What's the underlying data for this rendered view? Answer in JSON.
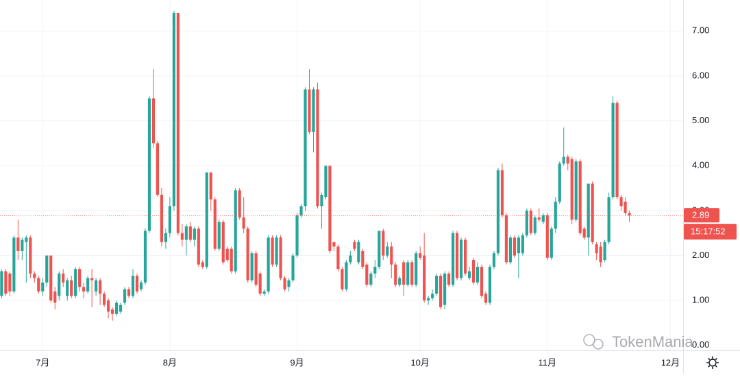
{
  "chart_data": {
    "type": "candlestick",
    "x": [
      20,
      21,
      22,
      23,
      24,
      25,
      26,
      27,
      28,
      29,
      30,
      31,
      32,
      33,
      34,
      35,
      36,
      37,
      38,
      39,
      40,
      41,
      42,
      43,
      44,
      45,
      46,
      47,
      48,
      49,
      50,
      51,
      52,
      53,
      54,
      55,
      56,
      57,
      58,
      59,
      60,
      61,
      62,
      63,
      64,
      65,
      66,
      67,
      68,
      69,
      70,
      71,
      72,
      73,
      74,
      75,
      76,
      77,
      78,
      79,
      80,
      81,
      82,
      83,
      84,
      85,
      86,
      87,
      88,
      89,
      90,
      91,
      92,
      93,
      94,
      95,
      96,
      97,
      98,
      99,
      100,
      101,
      102,
      103,
      104,
      105,
      106,
      107,
      108,
      109,
      110,
      111,
      112,
      113,
      114,
      115,
      116,
      117,
      118,
      119,
      120,
      121,
      122,
      123,
      124,
      125,
      126,
      127,
      128,
      129,
      130,
      131,
      132,
      133,
      134,
      135,
      136,
      137,
      138,
      139,
      140,
      141,
      142,
      143,
      144,
      145,
      146,
      147,
      148,
      149,
      150,
      151,
      152,
      153,
      154,
      155,
      156,
      157,
      158,
      159,
      160,
      161,
      162,
      163,
      164,
      165,
      166,
      167,
      168,
      169,
      170,
      171,
      172,
      173
    ],
    "ohlc": [
      [
        1.1,
        1.7,
        1.05,
        1.65
      ],
      [
        1.65,
        1.7,
        1.1,
        1.15
      ],
      [
        1.6,
        1.65,
        1.1,
        1.2
      ],
      [
        1.2,
        2.45,
        1.15,
        2.4
      ],
      [
        2.4,
        2.8,
        1.9,
        2.1
      ],
      [
        2.1,
        2.4,
        1.9,
        2.35
      ],
      [
        2.3,
        2.45,
        1.4,
        2.4
      ],
      [
        2.4,
        2.45,
        1.5,
        1.6
      ],
      [
        1.6,
        1.65,
        1.4,
        1.5
      ],
      [
        1.5,
        1.55,
        1.15,
        1.2
      ],
      [
        1.2,
        1.5,
        1.1,
        1.4
      ],
      [
        1.4,
        2.0,
        1.3,
        2.0
      ],
      [
        2.0,
        2.0,
        0.95,
        1.0
      ],
      [
        1.2,
        1.3,
        0.8,
        0.95
      ],
      [
        1.1,
        1.65,
        1.0,
        1.6
      ],
      [
        1.6,
        1.7,
        1.3,
        1.4
      ],
      [
        1.1,
        1.5,
        1.0,
        1.45
      ],
      [
        1.45,
        1.55,
        1.05,
        1.1
      ],
      [
        1.1,
        1.75,
        1.05,
        1.7
      ],
      [
        1.7,
        1.75,
        1.2,
        1.3
      ],
      [
        1.3,
        1.4,
        1.05,
        1.2
      ],
      [
        1.2,
        1.55,
        1.15,
        1.5
      ],
      [
        1.5,
        1.7,
        0.85,
        1.45
      ],
      [
        1.2,
        1.5,
        1.1,
        1.45
      ],
      [
        1.45,
        1.5,
        0.9,
        1.15
      ],
      [
        1.15,
        1.2,
        0.85,
        0.9
      ],
      [
        1.0,
        1.05,
        0.6,
        0.75
      ],
      [
        0.8,
        0.85,
        0.55,
        0.7
      ],
      [
        0.7,
        1.0,
        0.65,
        0.95
      ],
      [
        0.75,
        0.95,
        0.7,
        0.9
      ],
      [
        0.95,
        1.3,
        0.9,
        1.25
      ],
      [
        1.25,
        1.3,
        1.05,
        1.1
      ],
      [
        1.1,
        1.7,
        1.05,
        1.55
      ],
      [
        1.55,
        1.6,
        1.15,
        1.2
      ],
      [
        1.25,
        1.45,
        1.2,
        1.4
      ],
      [
        1.4,
        2.6,
        1.35,
        2.55
      ],
      [
        2.55,
        5.55,
        2.5,
        5.5
      ],
      [
        5.5,
        6.15,
        4.4,
        4.5
      ],
      [
        4.5,
        4.55,
        3.3,
        3.35
      ],
      [
        3.35,
        3.5,
        2.2,
        2.3
      ],
      [
        2.3,
        2.6,
        2.15,
        2.5
      ],
      [
        2.5,
        3.3,
        2.4,
        3.1
      ],
      [
        3.1,
        7.45,
        3.0,
        7.4
      ],
      [
        7.4,
        7.4,
        2.45,
        2.5
      ],
      [
        2.5,
        2.7,
        2.2,
        2.35
      ],
      [
        2.35,
        2.7,
        2.0,
        2.65
      ],
      [
        2.65,
        2.75,
        2.3,
        2.35
      ],
      [
        2.35,
        2.65,
        2.2,
        2.6
      ],
      [
        2.6,
        2.65,
        1.75,
        1.8
      ],
      [
        1.85,
        1.9,
        1.7,
        1.75
      ],
      [
        1.75,
        3.85,
        1.7,
        3.85
      ],
      [
        3.85,
        3.85,
        3.0,
        3.25
      ],
      [
        3.25,
        3.3,
        2.1,
        2.15
      ],
      [
        2.15,
        2.8,
        2.1,
        2.75
      ],
      [
        2.75,
        2.8,
        1.8,
        1.85
      ],
      [
        2.15,
        2.2,
        1.85,
        1.9
      ],
      [
        2.15,
        2.2,
        1.6,
        1.65
      ],
      [
        1.65,
        3.5,
        1.6,
        3.45
      ],
      [
        3.45,
        3.5,
        2.8,
        2.85
      ],
      [
        2.85,
        3.3,
        2.5,
        2.6
      ],
      [
        2.6,
        2.65,
        1.4,
        1.45
      ],
      [
        1.45,
        2.1,
        1.4,
        2.05
      ],
      [
        2.05,
        2.1,
        1.3,
        1.35
      ],
      [
        1.6,
        1.65,
        1.1,
        1.15
      ],
      [
        1.15,
        1.25,
        1.1,
        1.2
      ],
      [
        1.2,
        2.45,
        1.15,
        2.4
      ],
      [
        2.4,
        2.45,
        1.75,
        1.8
      ],
      [
        1.8,
        2.45,
        1.75,
        2.4
      ],
      [
        2.4,
        2.45,
        1.45,
        1.5
      ],
      [
        1.5,
        1.55,
        1.2,
        1.25
      ],
      [
        1.3,
        1.5,
        1.2,
        1.45
      ],
      [
        1.45,
        2.05,
        1.4,
        2.0
      ],
      [
        2.0,
        2.95,
        1.95,
        2.9
      ],
      [
        2.9,
        3.15,
        2.85,
        3.1
      ],
      [
        3.1,
        5.75,
        3.0,
        5.7
      ],
      [
        5.7,
        6.15,
        4.7,
        4.75
      ],
      [
        4.75,
        5.75,
        4.3,
        5.7
      ],
      [
        5.7,
        5.85,
        3.05,
        3.1
      ],
      [
        3.1,
        3.4,
        2.6,
        3.35
      ],
      [
        3.3,
        4.0,
        3.25,
        4.0
      ],
      [
        4.0,
        4.0,
        2.05,
        2.1
      ],
      [
        2.3,
        2.3,
        2.1,
        2.2
      ],
      [
        2.2,
        2.25,
        1.65,
        1.7
      ],
      [
        1.7,
        1.75,
        1.2,
        1.25
      ],
      [
        1.25,
        1.9,
        1.2,
        1.85
      ],
      [
        1.85,
        2.1,
        1.8,
        2.0
      ],
      [
        2.3,
        2.35,
        2.1,
        2.15
      ],
      [
        1.85,
        2.35,
        1.8,
        2.3
      ],
      [
        2.1,
        2.15,
        1.7,
        1.75
      ],
      [
        1.8,
        1.85,
        1.3,
        1.35
      ],
      [
        1.35,
        1.65,
        1.3,
        1.6
      ],
      [
        1.6,
        1.9,
        1.5,
        1.75
      ],
      [
        1.75,
        2.55,
        1.7,
        2.55
      ],
      [
        2.55,
        2.6,
        1.9,
        2.0
      ],
      [
        2.0,
        2.3,
        1.95,
        2.2
      ],
      [
        2.2,
        2.3,
        1.5,
        1.8
      ],
      [
        1.8,
        1.85,
        1.3,
        1.35
      ],
      [
        1.35,
        1.55,
        1.3,
        1.5
      ],
      [
        1.85,
        1.9,
        1.1,
        1.35
      ],
      [
        1.35,
        1.9,
        1.3,
        1.85
      ],
      [
        1.85,
        1.9,
        1.3,
        1.35
      ],
      [
        1.35,
        2.1,
        1.3,
        2.05
      ],
      [
        2.05,
        2.2,
        1.9,
        1.95
      ],
      [
        2.0,
        2.5,
        0.95,
        1.0
      ],
      [
        1.0,
        1.1,
        0.9,
        1.05
      ],
      [
        1.05,
        1.25,
        1.0,
        1.15
      ],
      [
        1.15,
        1.6,
        1.1,
        1.55
      ],
      [
        1.55,
        1.6,
        0.8,
        0.85
      ],
      [
        0.9,
        1.65,
        0.8,
        1.6
      ],
      [
        1.6,
        1.65,
        1.3,
        1.35
      ],
      [
        1.35,
        2.55,
        1.3,
        2.5
      ],
      [
        2.5,
        2.55,
        1.45,
        1.5
      ],
      [
        1.5,
        2.4,
        1.45,
        2.35
      ],
      [
        2.35,
        2.4,
        1.55,
        1.6
      ],
      [
        1.5,
        1.75,
        1.45,
        1.65
      ],
      [
        1.9,
        1.95,
        1.35,
        1.4
      ],
      [
        1.4,
        1.85,
        1.35,
        1.75
      ],
      [
        1.75,
        1.8,
        1.05,
        1.1
      ],
      [
        1.15,
        1.2,
        0.9,
        0.95
      ],
      [
        0.95,
        1.8,
        0.9,
        1.75
      ],
      [
        1.75,
        2.1,
        1.7,
        2.05
      ],
      [
        2.05,
        3.95,
        2.0,
        3.9
      ],
      [
        3.9,
        4.05,
        2.85,
        2.9
      ],
      [
        2.9,
        2.95,
        1.8,
        1.85
      ],
      [
        1.85,
        2.45,
        1.8,
        2.4
      ],
      [
        2.4,
        2.45,
        1.95,
        2.0
      ],
      [
        2.05,
        2.45,
        1.5,
        2.4
      ],
      [
        2.05,
        2.5,
        2.0,
        2.45
      ],
      [
        2.45,
        3.05,
        2.4,
        3.0
      ],
      [
        3.0,
        3.05,
        2.45,
        2.5
      ],
      [
        2.5,
        2.9,
        2.45,
        2.85
      ],
      [
        2.85,
        3.05,
        2.75,
        2.8
      ],
      [
        2.75,
        2.95,
        2.7,
        2.9
      ],
      [
        2.9,
        2.95,
        1.9,
        1.95
      ],
      [
        1.95,
        2.65,
        1.9,
        2.6
      ],
      [
        2.6,
        3.3,
        2.5,
        3.2
      ],
      [
        3.2,
        4.1,
        3.15,
        4.05
      ],
      [
        4.05,
        4.85,
        4.0,
        4.2
      ],
      [
        4.2,
        4.25,
        3.9,
        4.05
      ],
      [
        4.15,
        4.2,
        2.7,
        2.8
      ],
      [
        2.8,
        4.15,
        2.75,
        4.1
      ],
      [
        4.1,
        4.15,
        2.45,
        2.5
      ],
      [
        2.6,
        2.65,
        2.35,
        2.4
      ],
      [
        2.4,
        3.6,
        2.0,
        3.6
      ],
      [
        3.6,
        3.65,
        2.25,
        2.3
      ],
      [
        2.25,
        2.3,
        1.9,
        2.05
      ],
      [
        2.2,
        2.3,
        1.75,
        1.85
      ],
      [
        1.9,
        2.35,
        1.85,
        2.3
      ],
      [
        2.3,
        3.4,
        2.25,
        3.3
      ],
      [
        3.3,
        5.55,
        3.25,
        5.4
      ],
      [
        5.4,
        5.45,
        3.25,
        3.3
      ],
      [
        3.3,
        3.35,
        3.0,
        3.1
      ],
      [
        3.2,
        3.3,
        2.9,
        2.95
      ],
      [
        2.95,
        3.0,
        2.75,
        2.89
      ]
    ],
    "up_color": "#26a69a",
    "down_color": "#ef5350",
    "xlim": [
      19.6,
      186.1
    ],
    "xticks": [
      {
        "value": 30,
        "label": "7月"
      },
      {
        "value": 61,
        "label": "8月"
      },
      {
        "value": 92,
        "label": "9月"
      },
      {
        "value": 122,
        "label": "10月"
      },
      {
        "value": 153,
        "label": "11月"
      },
      {
        "value": 183,
        "label": "12月"
      }
    ],
    "ylim": [
      -0.11,
      7.69
    ],
    "yticks": [
      {
        "value": 0,
        "label": "0.00"
      },
      {
        "value": 1,
        "label": "1.00"
      },
      {
        "value": 2,
        "label": "2.00"
      },
      {
        "value": 3,
        "label": "3.00"
      },
      {
        "value": 4,
        "label": "4.00"
      },
      {
        "value": 5,
        "label": "5.00"
      },
      {
        "value": 6,
        "label": "6.00"
      },
      {
        "value": 7,
        "label": "7.00"
      }
    ],
    "grid": true,
    "countdown": "15:17:52",
    "watermark": "TokenMania"
  }
}
